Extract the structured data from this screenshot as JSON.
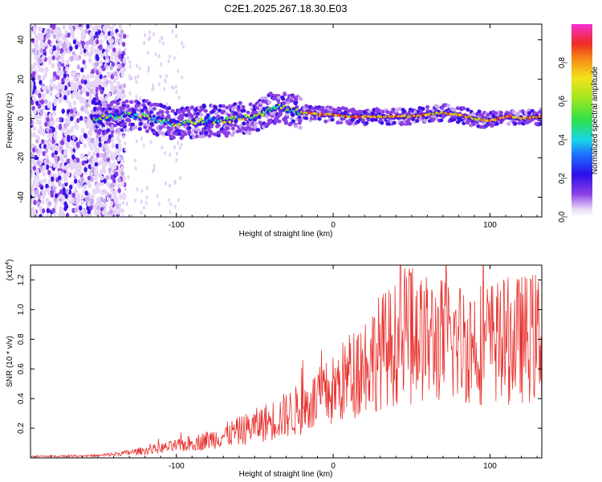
{
  "title": "C2E1.2025.267.18.30.E03",
  "chart_data": [
    {
      "type": "heatmap",
      "name": "spectrogram",
      "xlabel": "Height of straight line (km)",
      "ylabel": "Frequency (Hz)",
      "xlim": [
        -193,
        133
      ],
      "ylim": [
        -50,
        48
      ],
      "xticks": [
        -100,
        0,
        100
      ],
      "xtick_labels": [
        "-100",
        "0",
        "100"
      ],
      "yticks": [
        -40,
        -20,
        0,
        20,
        40
      ],
      "ytick_labels": [
        "-40",
        "-20",
        "0",
        "20",
        "40"
      ],
      "ridge_x": [
        -150,
        -140,
        -130,
        -120,
        -110,
        -100,
        -90,
        -80,
        -70,
        -60,
        -50,
        -45,
        -40,
        -35,
        -30,
        -25,
        -20,
        -15,
        -10,
        -5,
        0,
        10,
        20,
        30,
        40,
        50,
        60,
        70,
        80,
        90,
        100,
        110,
        120,
        133
      ],
      "ridge_y": [
        0,
        1,
        2,
        1,
        -1,
        -3,
        -2,
        -1,
        -1,
        0,
        1,
        3,
        5,
        6,
        5,
        4,
        3,
        3,
        2,
        2,
        2,
        1,
        1,
        1,
        1,
        1,
        2,
        3,
        2,
        0,
        -1,
        1,
        0,
        1
      ],
      "colorbar": {
        "label": "Normalized spectral amplitude",
        "range": [
          0,
          1
        ],
        "ticks": [
          0.0,
          0.2,
          0.4,
          0.6,
          0.8
        ],
        "tick_labels": [
          "0.0",
          "0.2",
          "0.4",
          "0.6",
          "0.8"
        ]
      }
    },
    {
      "type": "line",
      "name": "snr",
      "xlabel": "Height of straight line (km)",
      "ylabel": "SNR (10 * v/v)",
      "scale_label": "(x10",
      "scale_exp": "4",
      "scale_close": ")",
      "xlim": [
        -193,
        133
      ],
      "ylim": [
        0,
        1.3
      ],
      "xticks": [
        -100,
        0,
        100
      ],
      "xtick_labels": [
        "-100",
        "0",
        "100"
      ],
      "yticks": [
        0.2,
        0.4,
        0.6,
        0.8,
        1.0,
        1.2
      ],
      "ytick_labels": [
        "0.2",
        "0.4",
        "0.6",
        "0.8",
        "1.0",
        "1.2"
      ],
      "color": "#e8322e",
      "envelope_x": [
        -193,
        -150,
        -135,
        -120,
        -100,
        -80,
        -60,
        -40,
        -20,
        0,
        10,
        20,
        30,
        40,
        50,
        60,
        80,
        100,
        120,
        133
      ],
      "envelope_y": [
        0.01,
        0.015,
        0.03,
        0.05,
        0.08,
        0.12,
        0.18,
        0.25,
        0.33,
        0.45,
        0.55,
        0.64,
        0.72,
        0.77,
        0.8,
        0.8,
        0.78,
        0.78,
        0.8,
        0.82
      ]
    }
  ]
}
